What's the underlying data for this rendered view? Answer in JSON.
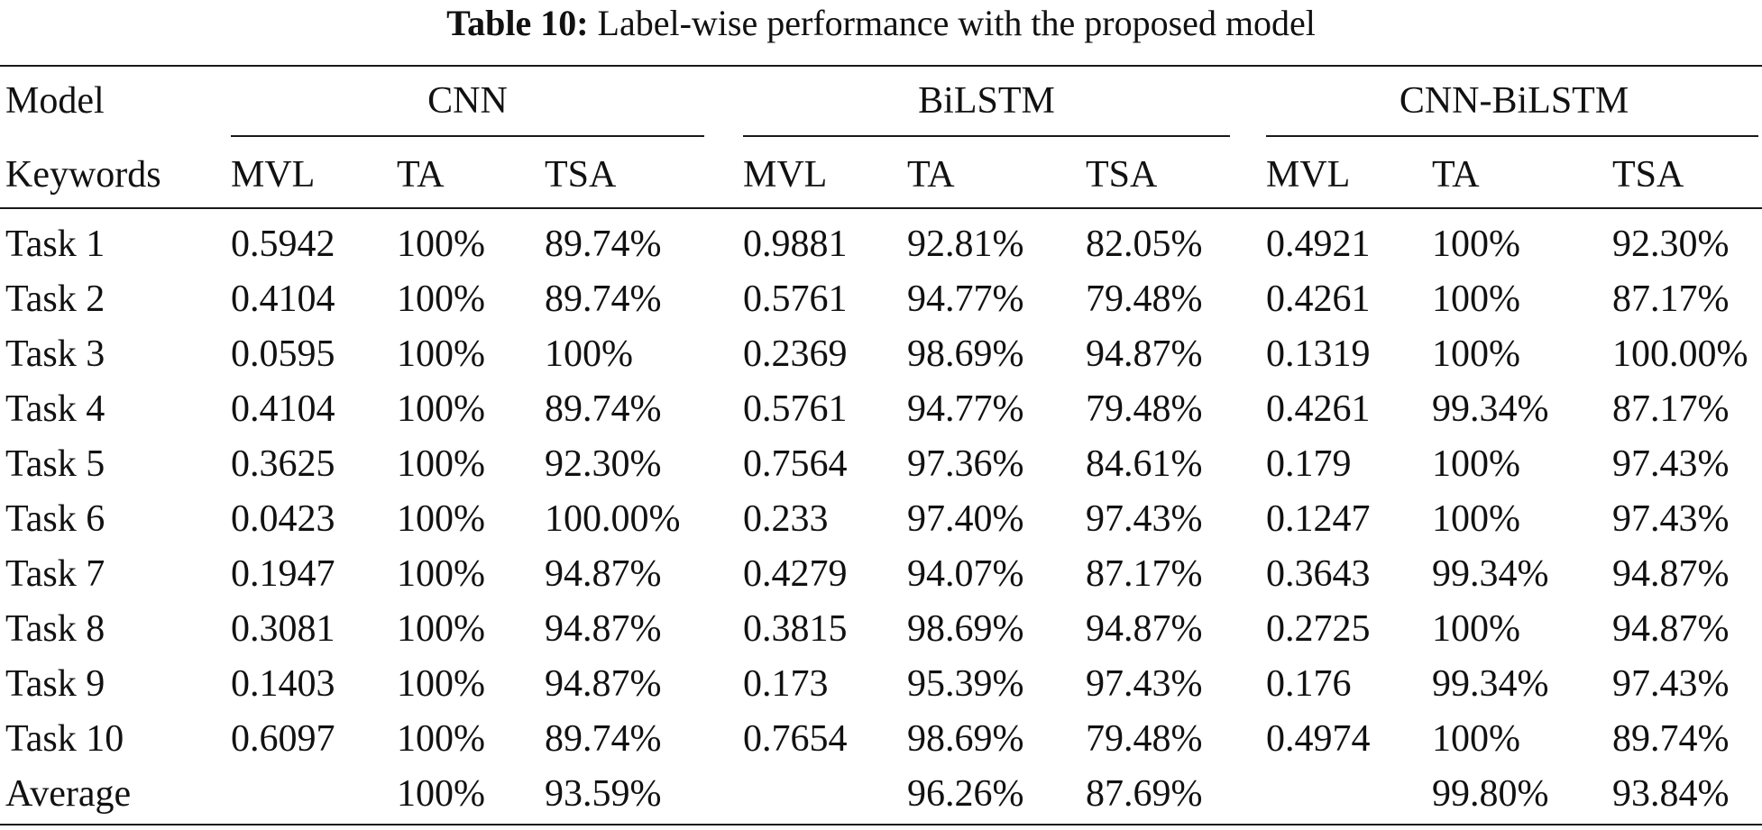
{
  "caption": {
    "label": "Table 10:",
    "text": "Label-wise performance with the proposed model"
  },
  "header": {
    "model_label": "Model",
    "keywords_label": "Keywords",
    "groups": [
      "CNN",
      "BiLSTM",
      "CNN-BiLSTM"
    ],
    "subcolumns": [
      "MVL",
      "TA",
      "TSA"
    ]
  },
  "rows": [
    {
      "label": "Task 1",
      "cnn": [
        "0.5942",
        "100%",
        "89.74%"
      ],
      "bilstm": [
        "0.9881",
        "92.81%",
        "82.05%"
      ],
      "cnn_bilstm": [
        "0.4921",
        "100%",
        "92.30%"
      ]
    },
    {
      "label": "Task 2",
      "cnn": [
        "0.4104",
        "100%",
        "89.74%"
      ],
      "bilstm": [
        "0.5761",
        "94.77%",
        "79.48%"
      ],
      "cnn_bilstm": [
        "0.4261",
        "100%",
        "87.17%"
      ]
    },
    {
      "label": "Task 3",
      "cnn": [
        "0.0595",
        "100%",
        "100%"
      ],
      "bilstm": [
        "0.2369",
        "98.69%",
        "94.87%"
      ],
      "cnn_bilstm": [
        "0.1319",
        "100%",
        "100.00%"
      ]
    },
    {
      "label": "Task 4",
      "cnn": [
        "0.4104",
        "100%",
        "89.74%"
      ],
      "bilstm": [
        "0.5761",
        "94.77%",
        "79.48%"
      ],
      "cnn_bilstm": [
        "0.4261",
        "99.34%",
        "87.17%"
      ]
    },
    {
      "label": "Task 5",
      "cnn": [
        "0.3625",
        "100%",
        "92.30%"
      ],
      "bilstm": [
        "0.7564",
        "97.36%",
        "84.61%"
      ],
      "cnn_bilstm": [
        "0.179",
        "100%",
        "97.43%"
      ]
    },
    {
      "label": "Task 6",
      "cnn": [
        "0.0423",
        "100%",
        "100.00%"
      ],
      "bilstm": [
        "0.233",
        "97.40%",
        "97.43%"
      ],
      "cnn_bilstm": [
        "0.1247",
        "100%",
        "97.43%"
      ]
    },
    {
      "label": "Task 7",
      "cnn": [
        "0.1947",
        "100%",
        "94.87%"
      ],
      "bilstm": [
        "0.4279",
        "94.07%",
        "87.17%"
      ],
      "cnn_bilstm": [
        "0.3643",
        "99.34%",
        "94.87%"
      ]
    },
    {
      "label": "Task 8",
      "cnn": [
        "0.3081",
        "100%",
        "94.87%"
      ],
      "bilstm": [
        "0.3815",
        "98.69%",
        "94.87%"
      ],
      "cnn_bilstm": [
        "0.2725",
        "100%",
        "94.87%"
      ]
    },
    {
      "label": "Task 9",
      "cnn": [
        "0.1403",
        "100%",
        "94.87%"
      ],
      "bilstm": [
        "0.173",
        "95.39%",
        "97.43%"
      ],
      "cnn_bilstm": [
        "0.176",
        "99.34%",
        "97.43%"
      ]
    },
    {
      "label": "Task 10",
      "cnn": [
        "0.6097",
        "100%",
        "89.74%"
      ],
      "bilstm": [
        "0.7654",
        "98.69%",
        "79.48%"
      ],
      "cnn_bilstm": [
        "0.4974",
        "100%",
        "89.74%"
      ]
    },
    {
      "label": "Average",
      "cnn": [
        "",
        "100%",
        "93.59%"
      ],
      "bilstm": [
        "",
        "96.26%",
        "87.69%"
      ],
      "cnn_bilstm": [
        "",
        "99.80%",
        "93.84%"
      ]
    }
  ]
}
